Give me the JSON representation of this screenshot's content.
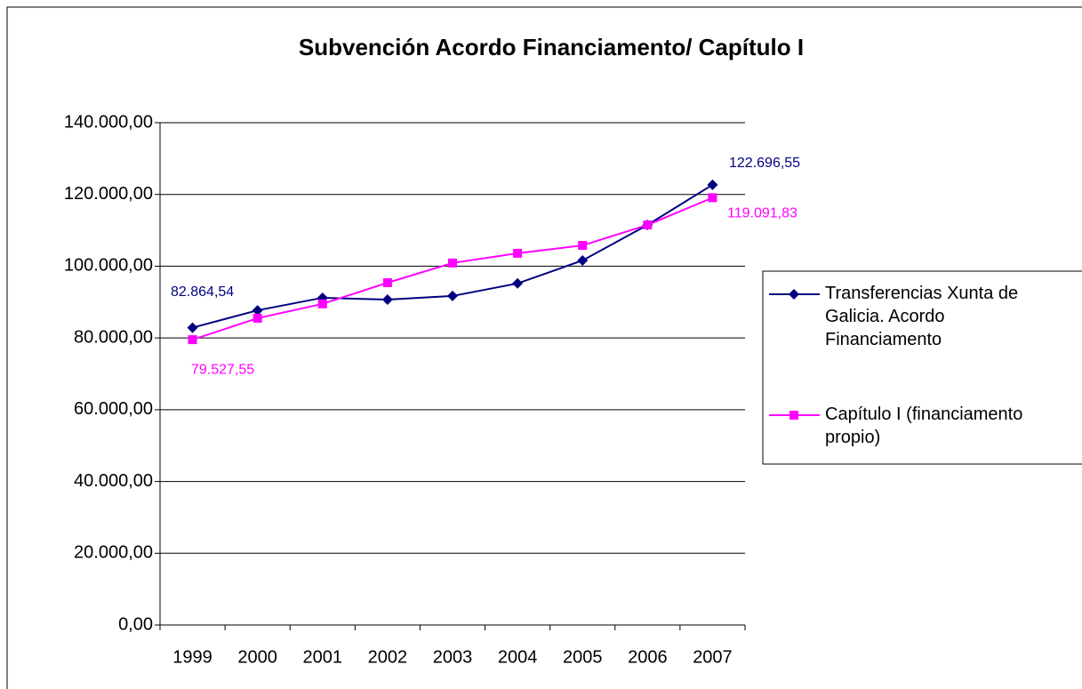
{
  "chart_data": {
    "type": "line",
    "title": "Subvención Acordo Financiamento/ Capítulo I",
    "categories": [
      "1999",
      "2000",
      "2001",
      "2002",
      "2003",
      "2004",
      "2005",
      "2006",
      "2007"
    ],
    "series": [
      {
        "name": "Transferencias Xunta de Galicia. Acordo Financiamento",
        "color": "#000080",
        "marker": "diamond",
        "values": [
          82864.54,
          87700,
          91200,
          90700,
          91700,
          95200,
          101600,
          111500,
          122696.55
        ],
        "value_labels": [
          "82.864,54",
          null,
          null,
          null,
          null,
          null,
          null,
          null,
          "122.696,55"
        ]
      },
      {
        "name": "Capítulo I (financiamento propio)",
        "color": "#ff00ff",
        "marker": "square",
        "values": [
          79527.55,
          85500,
          89500,
          95400,
          100900,
          103600,
          105800,
          111500,
          119091.83
        ],
        "value_labels": [
          "79.527,55",
          null,
          null,
          null,
          null,
          null,
          null,
          null,
          "119.091,83"
        ]
      }
    ],
    "ylim": [
      0,
      140000
    ],
    "yticks": [
      {
        "value": 0,
        "label": "0,00"
      },
      {
        "value": 20000,
        "label": "20.000,00"
      },
      {
        "value": 40000,
        "label": "40.000,00"
      },
      {
        "value": 60000,
        "label": "60.000,00"
      },
      {
        "value": 80000,
        "label": "80.000,00"
      },
      {
        "value": 100000,
        "label": "100.000,00"
      },
      {
        "value": 120000,
        "label": "120.000,00"
      },
      {
        "value": 140000,
        "label": "140.000,00"
      }
    ],
    "grid": true,
    "legend": "right"
  }
}
